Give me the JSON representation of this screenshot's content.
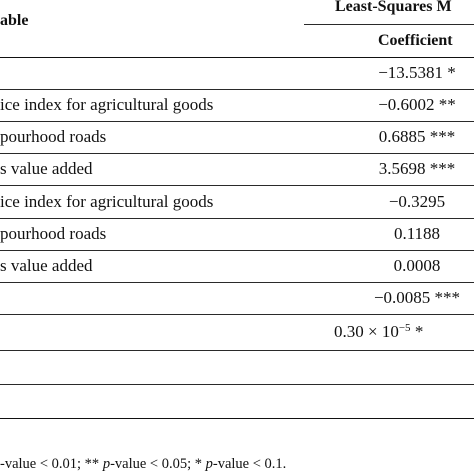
{
  "header": {
    "variable_label": "able",
    "method_label": "Least-Squares M",
    "coefficient_label": "Coefficient"
  },
  "rows": [
    {
      "label": "",
      "value": "−13.5381 *"
    },
    {
      "label": "ice index for agricultural goods",
      "value": "−0.6002 **"
    },
    {
      "label": "pourhood roads",
      "value": "0.6885 ***"
    },
    {
      "label": "s value added",
      "value": "3.5698 ***"
    },
    {
      "label": "ice index for agricultural goods",
      "value": "−0.3295"
    },
    {
      "label": "pourhood roads",
      "value": "0.1188"
    },
    {
      "label": "s value added",
      "value": "0.0008"
    },
    {
      "label": "",
      "value": "−0.0085 ***"
    },
    {
      "label": "",
      "value_base": "0.30 × 10",
      "value_exp": "−5",
      "value_suffix": " *"
    },
    {
      "label": "",
      "value": ""
    },
    {
      "label": "",
      "value": ""
    }
  ],
  "footnote": {
    "part1": "-value < 0.01; ** ",
    "p2": "p",
    "part2": "-value < 0.05; * ",
    "p3": "p",
    "part3": "-value < 0.1."
  }
}
